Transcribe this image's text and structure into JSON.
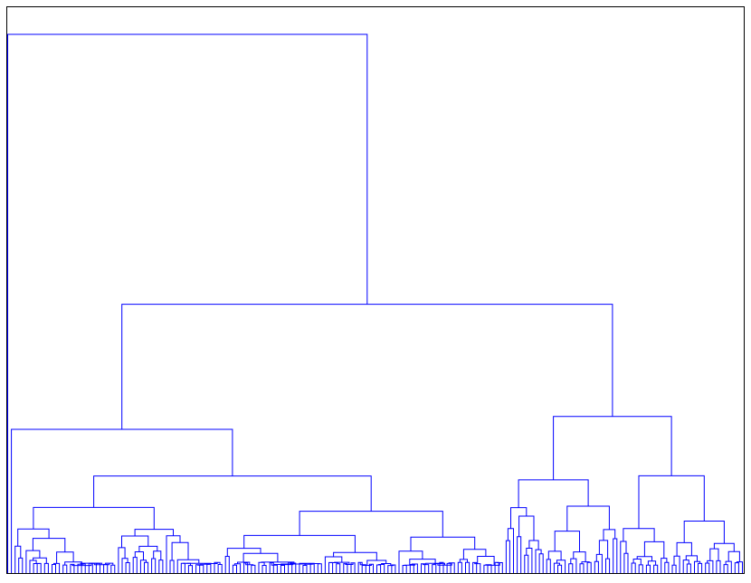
{
  "chart_data": {
    "type": "dendrogram",
    "title": "",
    "xlabel": "",
    "ylabel": "",
    "leaf_count": 200,
    "axes_visible": false,
    "grid": false,
    "legend": "none",
    "seed": 11,
    "height_range": [
      0,
      1
    ],
    "line_color": "#0000ff",
    "frame_color": "#000000"
  }
}
